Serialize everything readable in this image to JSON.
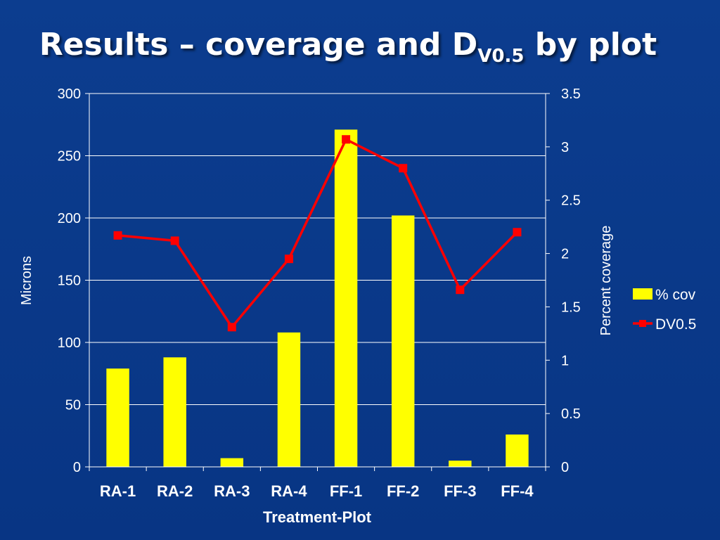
{
  "slide": {
    "title_main": "Results – coverage and D",
    "title_sub": "V0.5",
    "title_tail": " by plot"
  },
  "chart_data": {
    "type": "bar",
    "categories": [
      "RA-1",
      "RA-2",
      "RA-3",
      "RA-4",
      "FF-1",
      "FF-2",
      "FF-3",
      "FF-4"
    ],
    "xlabel": "Treatment-Plot",
    "ylabel": "Microns",
    "y2label": "Percent coverage",
    "ylim": [
      0,
      300
    ],
    "y2lim": [
      0,
      3.5
    ],
    "y_ticks": [
      "0",
      "50",
      "100",
      "150",
      "200",
      "250",
      "300"
    ],
    "y2_ticks": [
      "0",
      "0.5",
      "1",
      "1.5",
      "2",
      "2.5",
      "3",
      "3.5"
    ],
    "grid": true,
    "legend_position": "right",
    "series": [
      {
        "name": "% cov",
        "type": "bar",
        "axis": "left",
        "color": "#ffff00",
        "values": [
          79,
          88,
          7,
          108,
          271,
          202,
          5,
          26
        ]
      },
      {
        "name": "DV0.5",
        "type": "line",
        "axis": "right",
        "color": "#ff0000",
        "values": [
          2.17,
          2.12,
          1.31,
          1.95,
          3.07,
          2.8,
          1.66,
          2.2
        ]
      }
    ]
  }
}
